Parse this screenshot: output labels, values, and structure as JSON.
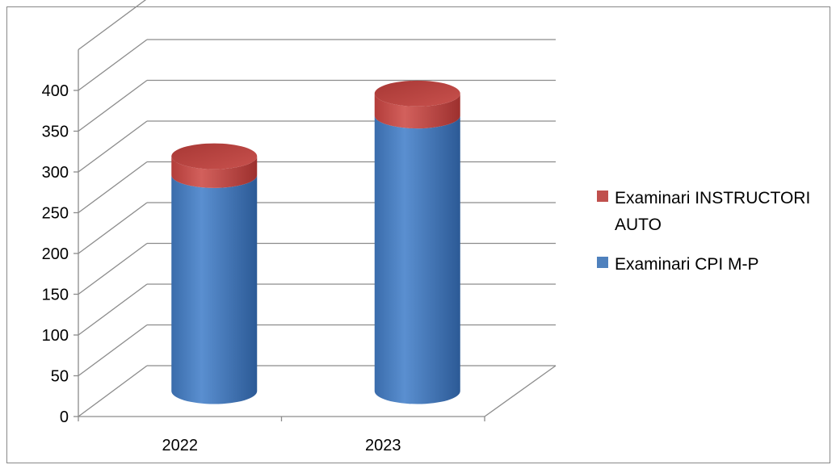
{
  "chart_data": {
    "type": "bar",
    "subtype": "3d-cylinder-stacked",
    "categories": [
      "2022",
      "2023"
    ],
    "series": [
      {
        "name": "Examinari CPI M-P",
        "values": [
          265,
          338
        ],
        "color": "#4f81bd"
      },
      {
        "name": "Examinari INSTRUCTORI AUTO",
        "values": [
          23,
          27
        ],
        "color": "#c0504d"
      }
    ],
    "y_ticks": [
      "0",
      "50",
      "100",
      "150",
      "200",
      "250",
      "300",
      "350",
      "400"
    ],
    "ylim": [
      0,
      450
    ],
    "grid": true,
    "legend": {
      "position": "right",
      "entries": [
        {
          "label_lines": [
            "Examinari INSTRUCTORI",
            "AUTO"
          ],
          "color": "#c0504d"
        },
        {
          "label_lines": [
            "Examinari CPI M-P"
          ],
          "color": "#4f81bd"
        }
      ]
    }
  }
}
